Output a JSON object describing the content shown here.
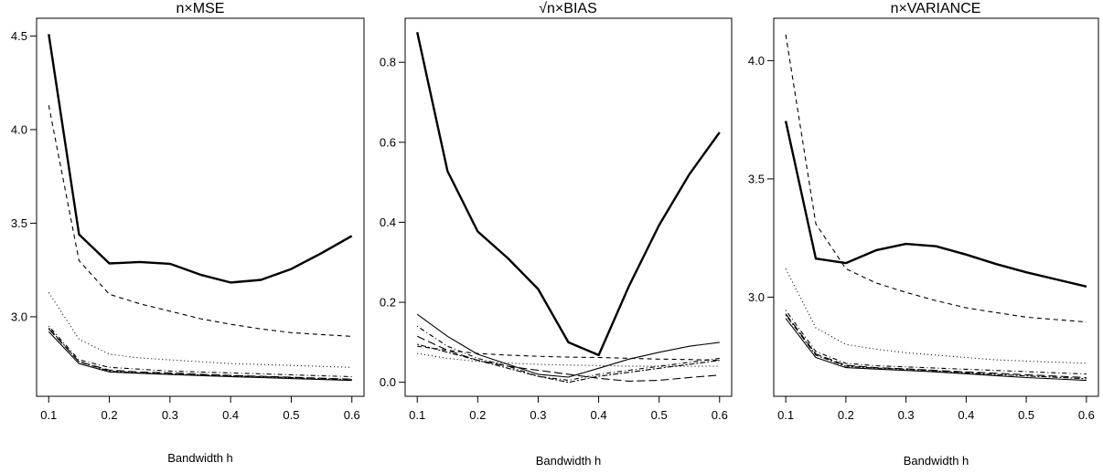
{
  "chart_data": [
    {
      "type": "line",
      "title": "n×MSE",
      "xlabel": "Bandwidth h",
      "ylabel": "",
      "xlim": [
        0.1,
        0.6
      ],
      "ylim": [
        2.65,
        4.52
      ],
      "xticks": [
        "0.1",
        "0.2",
        "0.3",
        "0.4",
        "0.5",
        "0.6"
      ],
      "yticks": [
        "3.0",
        "3.5",
        "4.0",
        "4.5"
      ],
      "x": [
        0.1,
        0.15,
        0.2,
        0.25,
        0.3,
        0.35,
        0.4,
        0.45,
        0.5,
        0.55,
        0.6
      ],
      "series": [
        {
          "style": "thick-solid",
          "values": [
            4.51,
            3.44,
            3.285,
            3.293,
            3.283,
            3.225,
            3.183,
            3.197,
            3.255,
            3.34,
            3.432
          ]
        },
        {
          "style": "dashed",
          "values": [
            4.13,
            3.3,
            3.12,
            3.07,
            3.03,
            2.99,
            2.96,
            2.935,
            2.915,
            2.905,
            2.895
          ]
        },
        {
          "style": "dotted",
          "values": [
            3.13,
            2.88,
            2.8,
            2.78,
            2.77,
            2.76,
            2.75,
            2.745,
            2.74,
            2.735,
            2.73
          ]
        },
        {
          "style": "dotdash",
          "values": [
            2.95,
            2.77,
            2.73,
            2.72,
            2.71,
            2.705,
            2.7,
            2.695,
            2.69,
            2.685,
            2.68
          ]
        },
        {
          "style": "longdash",
          "values": [
            2.935,
            2.76,
            2.715,
            2.705,
            2.7,
            2.693,
            2.687,
            2.682,
            2.677,
            2.672,
            2.667
          ]
        },
        {
          "style": "twodash",
          "values": [
            2.94,
            2.76,
            2.71,
            2.7,
            2.695,
            2.69,
            2.685,
            2.68,
            2.675,
            2.67,
            2.665
          ]
        },
        {
          "style": "solid",
          "values": [
            2.92,
            2.75,
            2.705,
            2.698,
            2.692,
            2.686,
            2.68,
            2.675,
            2.67,
            2.665,
            2.66
          ]
        }
      ]
    },
    {
      "type": "line",
      "title": "√n×BIAS",
      "xlabel": "Bandwidth h",
      "ylabel": "",
      "xlim": [
        0.1,
        0.6
      ],
      "ylim": [
        0.0,
        0.875
      ],
      "xticks": [
        "0.1",
        "0.2",
        "0.3",
        "0.4",
        "0.5",
        "0.6"
      ],
      "yticks": [
        "0.0",
        "0.2",
        "0.4",
        "0.6",
        "0.8"
      ],
      "x": [
        0.1,
        0.15,
        0.2,
        0.25,
        0.3,
        0.35,
        0.4,
        0.45,
        0.5,
        0.55,
        0.6
      ],
      "series": [
        {
          "style": "thick-solid",
          "values": [
            0.875,
            0.528,
            0.377,
            0.31,
            0.233,
            0.1,
            0.068,
            0.24,
            0.393,
            0.52,
            0.625
          ]
        },
        {
          "style": "solid",
          "values": [
            0.17,
            0.115,
            0.07,
            0.045,
            0.02,
            0.013,
            0.035,
            0.058,
            0.075,
            0.09,
            0.1
          ]
        },
        {
          "style": "dotdash",
          "values": [
            0.14,
            0.09,
            0.06,
            0.04,
            0.015,
            0.005,
            0.02,
            0.03,
            0.04,
            0.05,
            0.06
          ]
        },
        {
          "style": "longdash",
          "values": [
            0.115,
            0.08,
            0.055,
            0.04,
            0.03,
            0.02,
            0.01,
            0.003,
            0.005,
            0.012,
            0.018
          ]
        },
        {
          "style": "twodash",
          "values": [
            0.095,
            0.075,
            0.055,
            0.035,
            0.015,
            0.0,
            0.015,
            0.025,
            0.035,
            0.045,
            0.055
          ]
        },
        {
          "style": "dashed",
          "values": [
            0.09,
            0.08,
            0.072,
            0.068,
            0.065,
            0.063,
            0.062,
            0.06,
            0.058,
            0.057,
            0.055
          ]
        },
        {
          "style": "dotted",
          "values": [
            0.072,
            0.06,
            0.052,
            0.048,
            0.045,
            0.043,
            0.042,
            0.04,
            0.04,
            0.04,
            0.04
          ]
        }
      ]
    },
    {
      "type": "line",
      "title": "n×VARIANCE",
      "xlabel": "Bandwidth h",
      "ylabel": "",
      "xlim": [
        0.1,
        0.6
      ],
      "ylim": [
        2.64,
        4.12
      ],
      "xticks": [
        "0.1",
        "0.2",
        "0.3",
        "0.4",
        "0.5",
        "0.6"
      ],
      "yticks": [
        "3.0",
        "3.5",
        "4.0"
      ],
      "x": [
        0.1,
        0.15,
        0.2,
        0.25,
        0.3,
        0.35,
        0.4,
        0.45,
        0.5,
        0.55,
        0.6
      ],
      "series": [
        {
          "style": "dashed",
          "values": [
            4.11,
            3.31,
            3.12,
            3.06,
            3.02,
            2.985,
            2.955,
            2.935,
            2.915,
            2.905,
            2.895
          ]
        },
        {
          "style": "thick-solid",
          "values": [
            3.745,
            3.163,
            3.144,
            3.198,
            3.225,
            3.215,
            3.18,
            3.14,
            3.105,
            3.075,
            3.045
          ]
        },
        {
          "style": "dotted",
          "values": [
            3.12,
            2.87,
            2.8,
            2.78,
            2.765,
            2.755,
            2.745,
            2.735,
            2.73,
            2.725,
            2.72
          ]
        },
        {
          "style": "dotdash",
          "values": [
            2.945,
            2.77,
            2.72,
            2.71,
            2.705,
            2.7,
            2.695,
            2.69,
            2.685,
            2.68,
            2.675
          ]
        },
        {
          "style": "longdash",
          "values": [
            2.93,
            2.76,
            2.712,
            2.702,
            2.697,
            2.69,
            2.684,
            2.678,
            2.672,
            2.666,
            2.66
          ]
        },
        {
          "style": "twodash",
          "values": [
            2.925,
            2.755,
            2.708,
            2.7,
            2.695,
            2.688,
            2.68,
            2.673,
            2.667,
            2.661,
            2.655
          ]
        },
        {
          "style": "solid",
          "values": [
            2.91,
            2.745,
            2.702,
            2.696,
            2.69,
            2.684,
            2.676,
            2.668,
            2.66,
            2.654,
            2.648
          ]
        }
      ]
    }
  ]
}
